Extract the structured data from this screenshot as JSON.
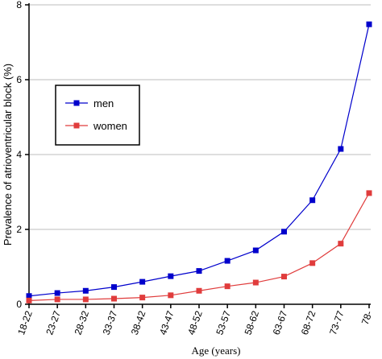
{
  "chart_data": {
    "type": "line",
    "xlabel": "Age (years)",
    "ylabel": "Prevalence of atrioventricular block (%)",
    "categories": [
      "18-22",
      "23-27",
      "28-32",
      "33-37",
      "38-42",
      "43-47",
      "48-52",
      "53-57",
      "58-62",
      "63-67",
      "68-72",
      "73-77",
      "78-"
    ],
    "ylim": [
      0,
      8
    ],
    "yticks": [
      "0",
      "2",
      "4",
      "6",
      "8"
    ],
    "grid": "horizontal",
    "legend_position": "upper-left",
    "series": [
      {
        "name": "men",
        "color": "#0000cc",
        "marker": "square",
        "values": [
          0.22,
          0.3,
          0.36,
          0.46,
          0.6,
          0.75,
          0.89,
          1.16,
          1.44,
          1.94,
          2.78,
          4.15,
          7.48
        ]
      },
      {
        "name": "women",
        "color": "#e03c3c",
        "marker": "square",
        "values": [
          0.1,
          0.13,
          0.13,
          0.15,
          0.18,
          0.24,
          0.36,
          0.48,
          0.58,
          0.74,
          1.1,
          1.62,
          2.97
        ]
      }
    ]
  }
}
